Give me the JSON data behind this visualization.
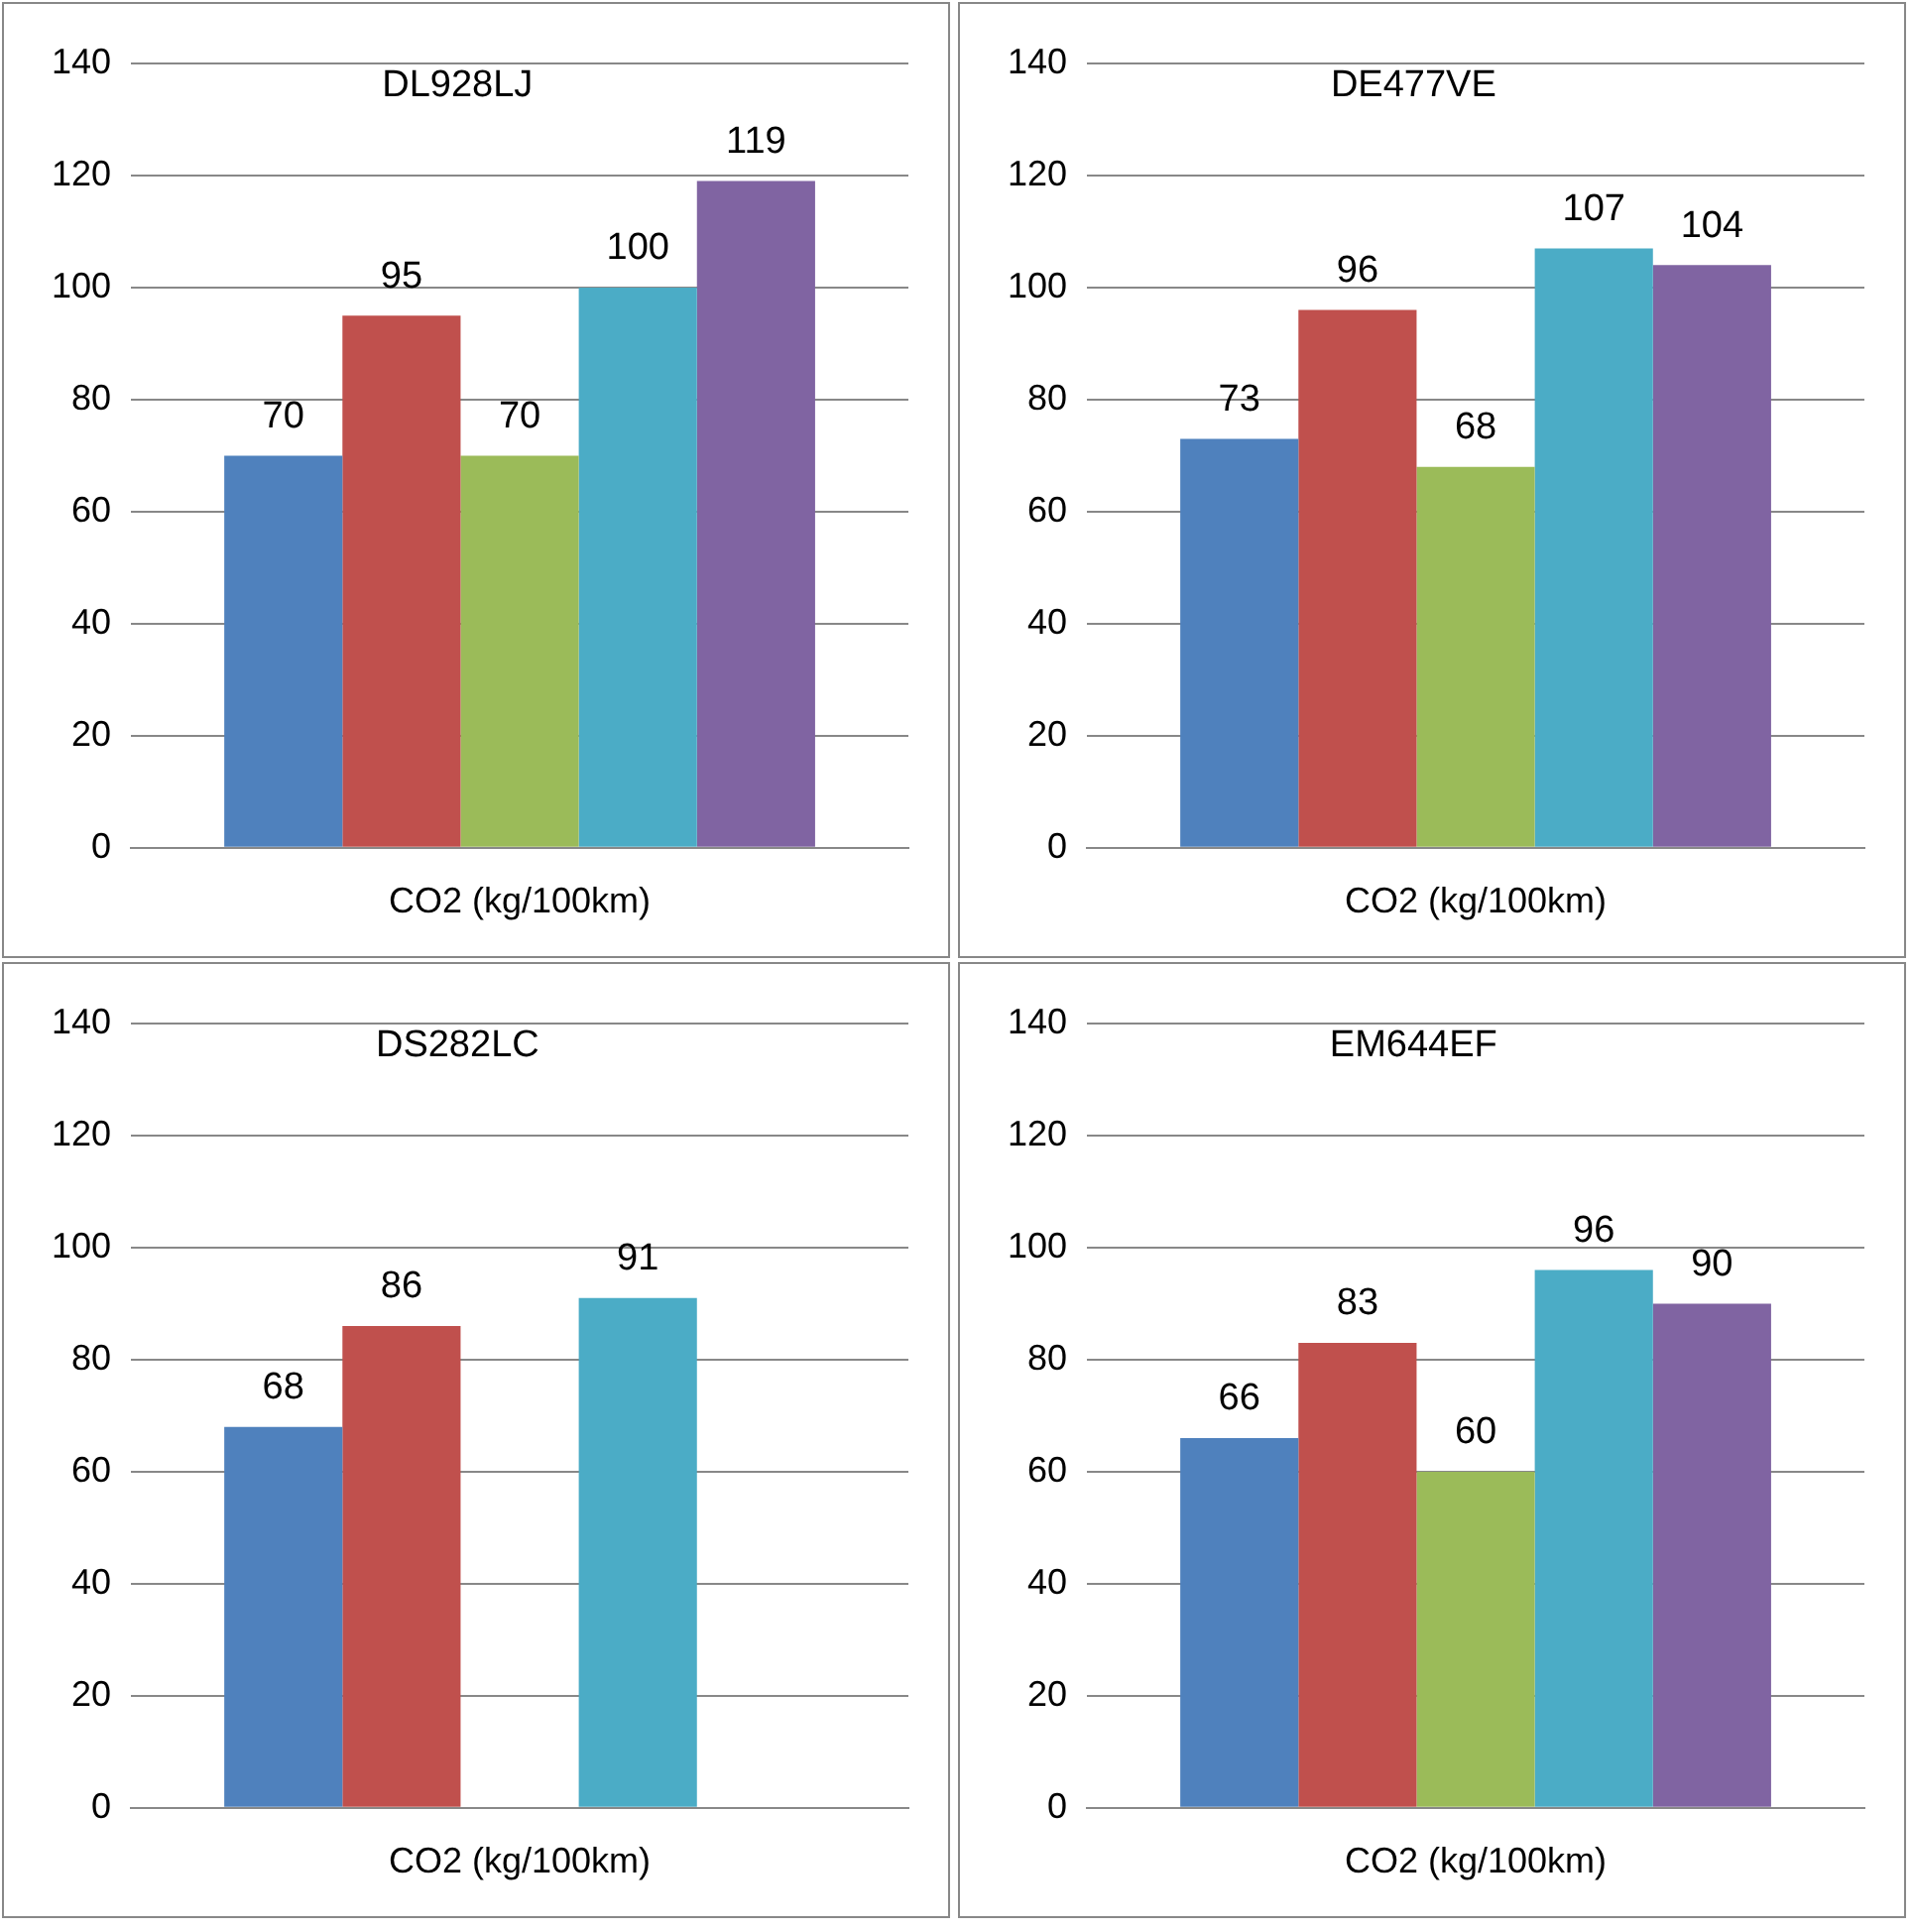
{
  "chart_data": [
    {
      "type": "bar",
      "title": "DL928LJ",
      "categories": [
        "CO2 (kg/100km)"
      ],
      "series": [
        {
          "color": "#4f81bd",
          "values": [
            70
          ]
        },
        {
          "color": "#c0504d",
          "values": [
            95
          ]
        },
        {
          "color": "#9bbb59",
          "values": [
            70
          ]
        },
        {
          "color": "#4bacc6",
          "values": [
            100
          ]
        },
        {
          "color": "#8064a2",
          "values": [
            119
          ]
        }
      ],
      "ylim": [
        0,
        140
      ],
      "yticks": [
        0,
        20,
        40,
        60,
        80,
        100,
        120,
        140
      ],
      "grid": "y",
      "data_labels": true
    },
    {
      "type": "bar",
      "title": "DE477VE",
      "categories": [
        "CO2 (kg/100km)"
      ],
      "series": [
        {
          "color": "#4f81bd",
          "values": [
            73
          ]
        },
        {
          "color": "#c0504d",
          "values": [
            96
          ]
        },
        {
          "color": "#9bbb59",
          "values": [
            68
          ]
        },
        {
          "color": "#4bacc6",
          "values": [
            107
          ]
        },
        {
          "color": "#8064a2",
          "values": [
            104
          ]
        }
      ],
      "ylim": [
        0,
        140
      ],
      "yticks": [
        0,
        20,
        40,
        60,
        80,
        100,
        120,
        140
      ],
      "grid": "y",
      "data_labels": true
    },
    {
      "type": "bar",
      "title": "DS282LC",
      "categories": [
        "CO2 (kg/100km)"
      ],
      "series": [
        {
          "color": "#4f81bd",
          "values": [
            68
          ]
        },
        {
          "color": "#c0504d",
          "values": [
            86
          ]
        },
        {
          "color": "#9bbb59",
          "values": [
            null
          ]
        },
        {
          "color": "#4bacc6",
          "values": [
            91
          ]
        },
        {
          "color": "#8064a2",
          "values": [
            null
          ]
        }
      ],
      "ylim": [
        0,
        140
      ],
      "yticks": [
        0,
        20,
        40,
        60,
        80,
        100,
        120,
        140
      ],
      "grid": "y",
      "data_labels": true
    },
    {
      "type": "bar",
      "title": "EM644EF",
      "categories": [
        "CO2 (kg/100km)"
      ],
      "series": [
        {
          "color": "#4f81bd",
          "values": [
            66
          ]
        },
        {
          "color": "#c0504d",
          "values": [
            83
          ]
        },
        {
          "color": "#9bbb59",
          "values": [
            60
          ]
        },
        {
          "color": "#4bacc6",
          "values": [
            96
          ]
        },
        {
          "color": "#8064a2",
          "values": [
            90
          ]
        }
      ],
      "ylim": [
        0,
        140
      ],
      "yticks": [
        0,
        20,
        40,
        60,
        80,
        100,
        120,
        140
      ],
      "grid": "y",
      "data_labels": true
    }
  ]
}
